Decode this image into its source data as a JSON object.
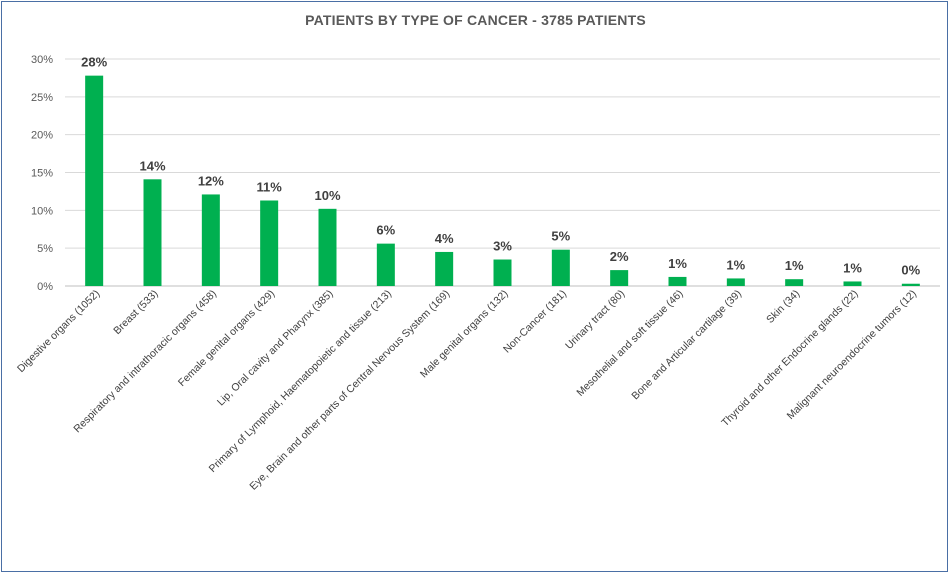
{
  "chart_data": {
    "type": "bar",
    "title": "PATIENTS BY TYPE OF CANCER - 3785 PATIENTS",
    "xlabel": "",
    "ylabel": "",
    "ylim": [
      0,
      30
    ],
    "y_ticks": [
      "0%",
      "5%",
      "10%",
      "15%",
      "20%",
      "25%",
      "30%"
    ],
    "grid": true,
    "categories": [
      "Digestive organs (1052)",
      "Breast (533)",
      "Respiratory and intrathoracic organs (458)",
      "Female genital organs (429)",
      "Lip, Oral cavity and Pharynx (385)",
      "Primary of Lymphoid, Haematopoietic and  tissue (213)",
      "Eye, Brain and other parts of Central Nervous System (169)",
      "Male genital organs (132)",
      "Non-Cancer (181)",
      "Urinary tract (80)",
      "Mesothelial and soft tissue (46)",
      "Bone and Articular cartilage (39)",
      "Skin (34)",
      "Thyroid and other Endocrine glands (22)",
      "Malignant neuroendocrine tumors (12)"
    ],
    "values": [
      27.8,
      14.1,
      12.1,
      11.3,
      10.2,
      5.6,
      4.5,
      3.5,
      4.8,
      2.1,
      1.2,
      1.0,
      0.9,
      0.6,
      0.3
    ],
    "data_labels": [
      "28%",
      "14%",
      "12%",
      "11%",
      "10%",
      "6%",
      "4%",
      "3%",
      "5%",
      "2%",
      "1%",
      "1%",
      "1%",
      "1%",
      "0%"
    ],
    "colors": {
      "bar": "#00b050",
      "grid": "#d9d9d9",
      "axis": "#bfbfbf"
    }
  }
}
